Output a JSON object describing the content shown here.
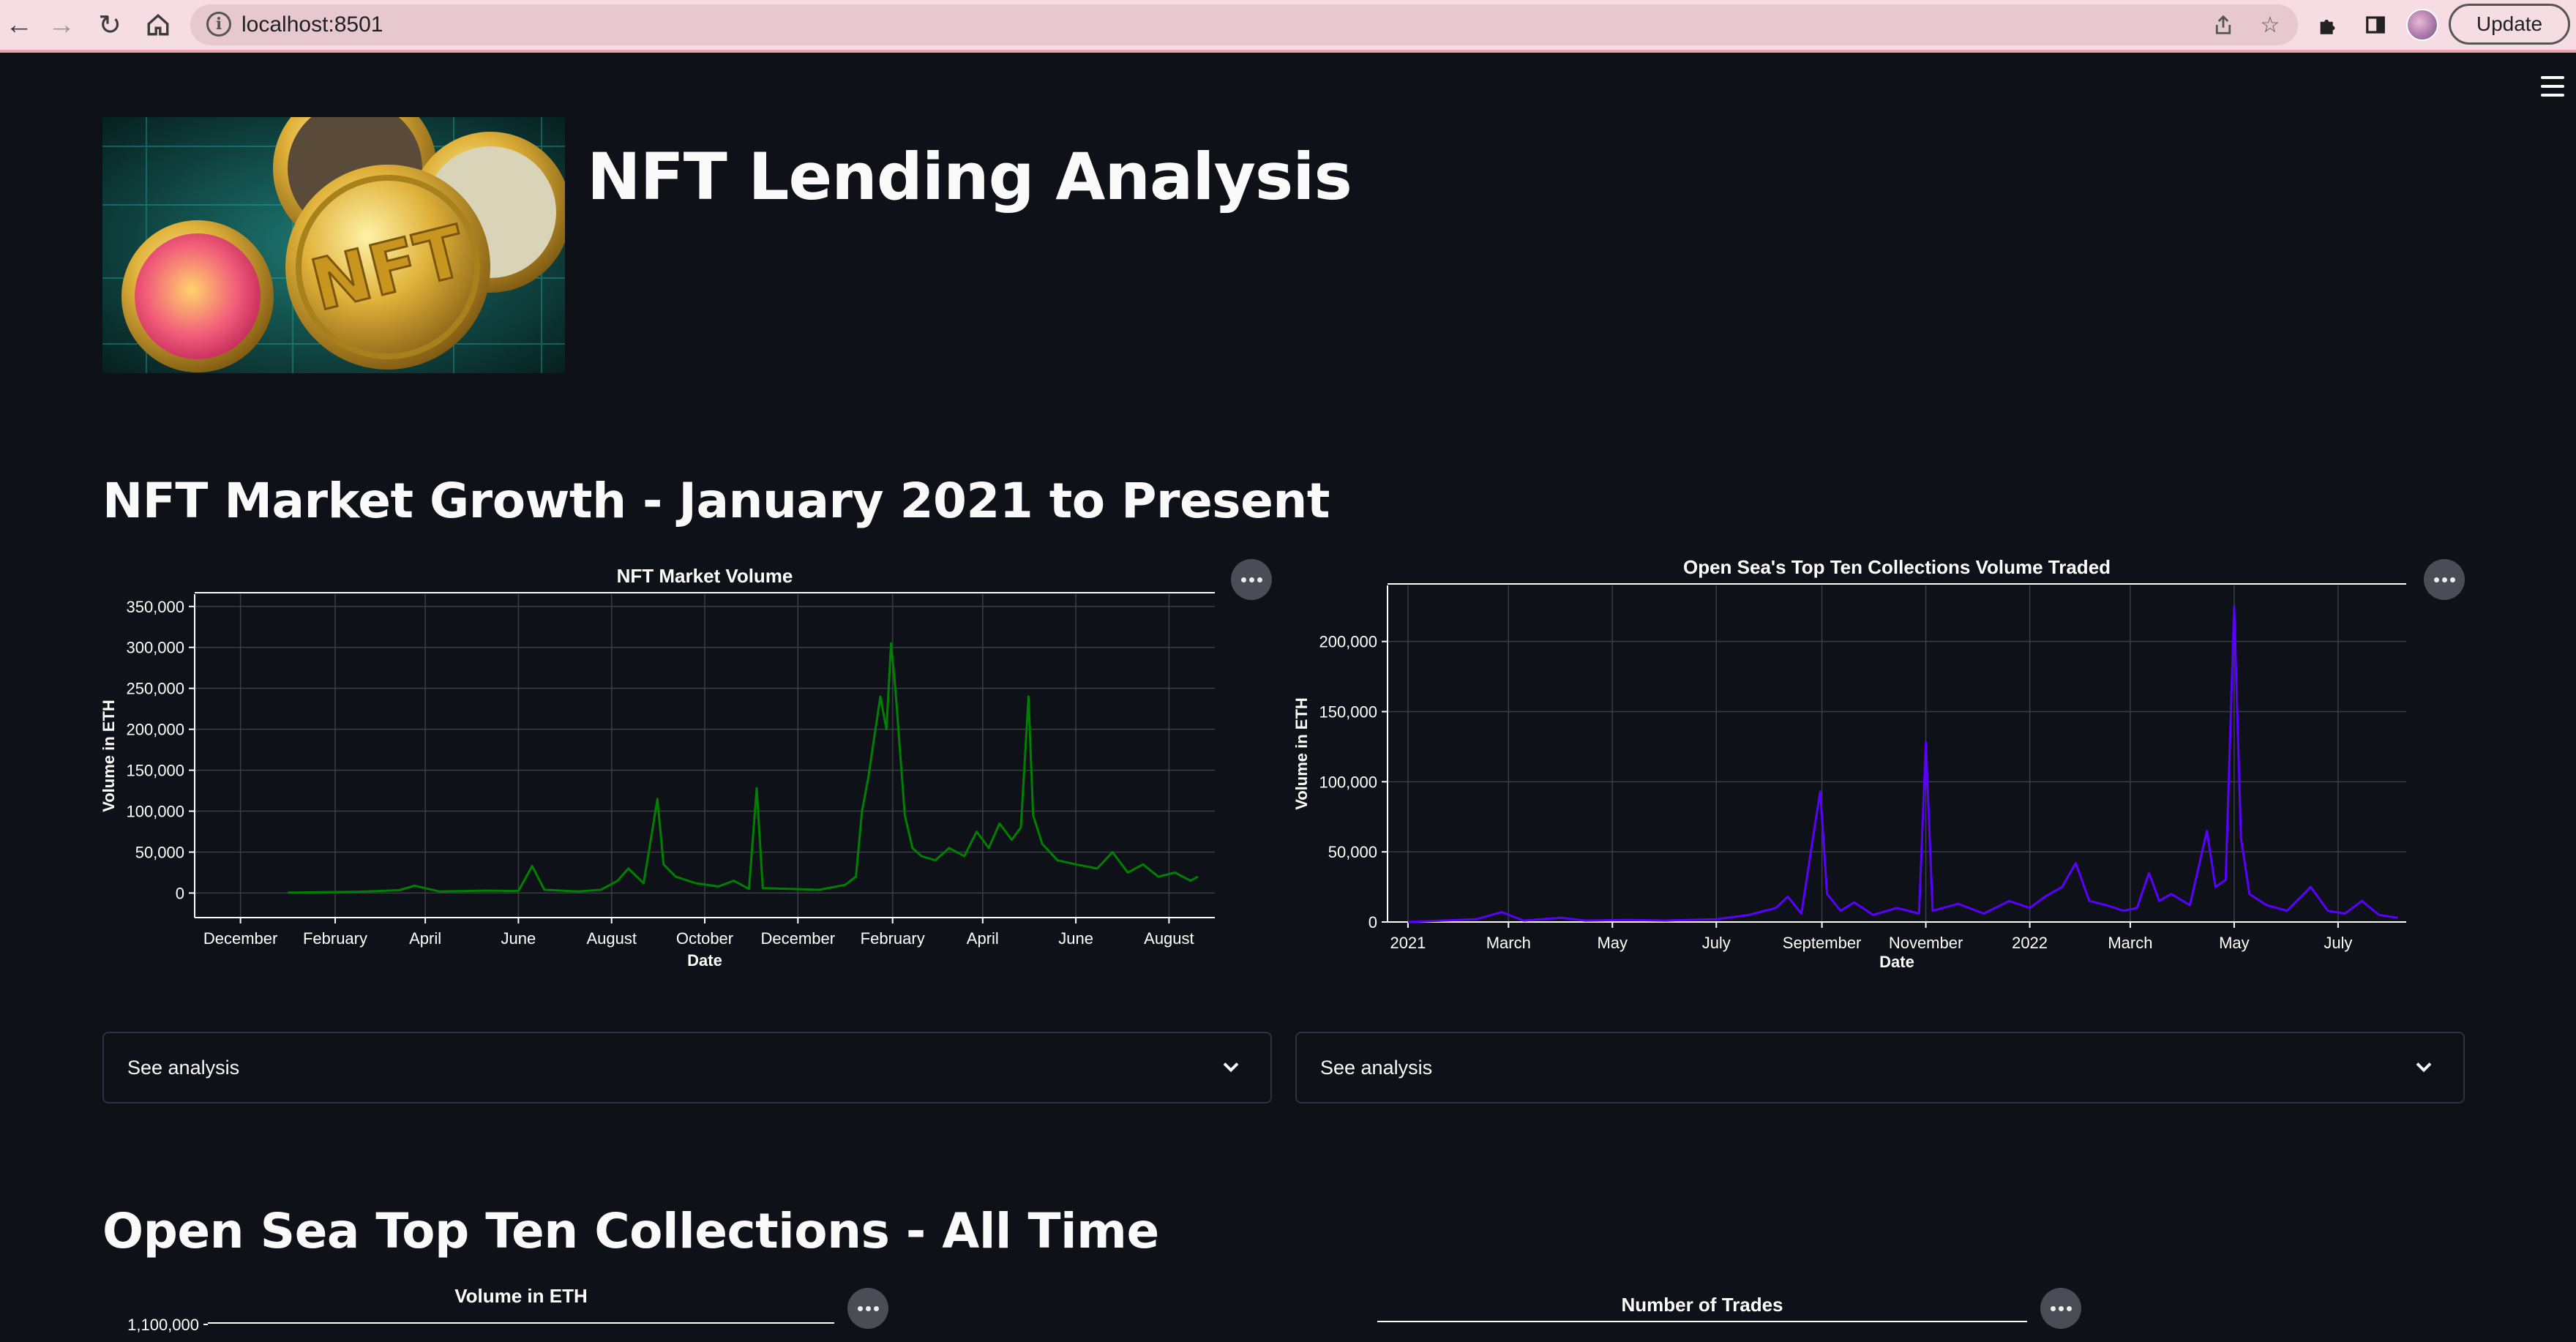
{
  "browser": {
    "url": "localhost:8501",
    "update_label": "Update"
  },
  "page": {
    "title": "NFT Lending Analysis",
    "hero_badge": "NFT"
  },
  "sections": [
    {
      "title": "NFT Market Growth - January 2021 to Present"
    },
    {
      "title": "Open Sea Top Ten Collections - All Time"
    }
  ],
  "expanders": [
    {
      "label": "See analysis"
    },
    {
      "label": "See analysis"
    }
  ],
  "colors": {
    "background": "#0e1117",
    "market_line": "#008000",
    "opensea_line": "#5a00ff",
    "grid": "#3a3d46",
    "text": "#ffffff"
  },
  "chart_data": [
    {
      "type": "line",
      "title": "NFT Market Volume",
      "xlabel": "Date",
      "ylabel": "Volume in ETH",
      "x_ticks": [
        "December",
        "February",
        "April",
        "June",
        "August",
        "October",
        "December",
        "February",
        "April",
        "June",
        "August"
      ],
      "y_ticks": [
        "0",
        "50,000",
        "100,000",
        "150,000",
        "200,000",
        "250,000",
        "300,000",
        "350,000"
      ],
      "ylim": [
        -30000,
        365000
      ],
      "x_range": [
        "2020-11-01",
        "2022-08-31"
      ],
      "grid": true,
      "series": [
        {
          "points": [
            [
              "2021-01-01",
              500
            ],
            [
              "2021-02-15",
              1500
            ],
            [
              "2021-03-15",
              3500
            ],
            [
              "2021-03-25",
              9000
            ],
            [
              "2021-04-10",
              2000
            ],
            [
              "2021-05-10",
              3000
            ],
            [
              "2021-06-01",
              2500
            ],
            [
              "2021-06-10",
              33000
            ],
            [
              "2021-06-18",
              4000
            ],
            [
              "2021-07-10",
              2000
            ],
            [
              "2021-07-25",
              4000
            ],
            [
              "2021-08-05",
              15000
            ],
            [
              "2021-08-12",
              30000
            ],
            [
              "2021-08-22",
              12000
            ],
            [
              "2021-08-28",
              80000
            ],
            [
              "2021-08-31",
              115000
            ],
            [
              "2021-09-04",
              35000
            ],
            [
              "2021-09-12",
              20000
            ],
            [
              "2021-09-25",
              12000
            ],
            [
              "2021-10-10",
              8000
            ],
            [
              "2021-10-20",
              15000
            ],
            [
              "2021-10-30",
              5000
            ],
            [
              "2021-11-04",
              128000
            ],
            [
              "2021-11-08",
              6000
            ],
            [
              "2021-11-25",
              5000
            ],
            [
              "2021-12-15",
              4000
            ],
            [
              "2022-01-01",
              10000
            ],
            [
              "2022-01-08",
              20000
            ],
            [
              "2022-01-12",
              100000
            ],
            [
              "2022-01-16",
              140000
            ],
            [
              "2022-01-20",
              190000
            ],
            [
              "2022-01-24",
              240000
            ],
            [
              "2022-01-28",
              200000
            ],
            [
              "2022-01-31",
              305000
            ],
            [
              "2022-02-03",
              245000
            ],
            [
              "2022-02-06",
              170000
            ],
            [
              "2022-02-09",
              95000
            ],
            [
              "2022-02-14",
              55000
            ],
            [
              "2022-02-20",
              45000
            ],
            [
              "2022-03-01",
              40000
            ],
            [
              "2022-03-10",
              55000
            ],
            [
              "2022-03-20",
              45000
            ],
            [
              "2022-03-28",
              75000
            ],
            [
              "2022-04-05",
              55000
            ],
            [
              "2022-04-12",
              85000
            ],
            [
              "2022-04-20",
              65000
            ],
            [
              "2022-04-26",
              80000
            ],
            [
              "2022-05-01",
              240000
            ],
            [
              "2022-05-04",
              95000
            ],
            [
              "2022-05-10",
              60000
            ],
            [
              "2022-05-20",
              40000
            ],
            [
              "2022-06-01",
              35000
            ],
            [
              "2022-06-15",
              30000
            ],
            [
              "2022-06-25",
              50000
            ],
            [
              "2022-07-05",
              25000
            ],
            [
              "2022-07-15",
              35000
            ],
            [
              "2022-07-25",
              20000
            ],
            [
              "2022-08-05",
              25000
            ],
            [
              "2022-08-15",
              15000
            ],
            [
              "2022-08-20",
              20000
            ]
          ]
        }
      ]
    },
    {
      "type": "line",
      "title": "Open Sea's Top Ten Collections Volume Traded",
      "xlabel": "Date",
      "ylabel": "Volume in ETH",
      "x_ticks": [
        "2021",
        "March",
        "May",
        "July",
        "September",
        "November",
        "2022",
        "March",
        "May",
        "July"
      ],
      "y_ticks": [
        "0",
        "50,000",
        "100,000",
        "150,000",
        "200,000"
      ],
      "ylim": [
        0,
        240000
      ],
      "x_range": [
        "2020-12-20",
        "2022-08-10"
      ],
      "grid": true,
      "series": [
        {
          "points": [
            [
              "2021-01-01",
              0
            ],
            [
              "2021-02-10",
              2000
            ],
            [
              "2021-02-25",
              7000
            ],
            [
              "2021-03-10",
              1000
            ],
            [
              "2021-04-01",
              3000
            ],
            [
              "2021-04-15",
              1000
            ],
            [
              "2021-05-10",
              1500
            ],
            [
              "2021-06-01",
              1000
            ],
            [
              "2021-07-01",
              2000
            ],
            [
              "2021-07-20",
              5000
            ],
            [
              "2021-08-05",
              10000
            ],
            [
              "2021-08-12",
              18000
            ],
            [
              "2021-08-20",
              6000
            ],
            [
              "2021-08-28",
              70000
            ],
            [
              "2021-08-31",
              93000
            ],
            [
              "2021-09-04",
              20000
            ],
            [
              "2021-09-12",
              8000
            ],
            [
              "2021-09-20",
              14000
            ],
            [
              "2021-10-01",
              5000
            ],
            [
              "2021-10-15",
              10000
            ],
            [
              "2021-10-28",
              6000
            ],
            [
              "2021-11-01",
              128000
            ],
            [
              "2021-11-05",
              8000
            ],
            [
              "2021-11-20",
              13000
            ],
            [
              "2021-12-05",
              6000
            ],
            [
              "2021-12-20",
              15000
            ],
            [
              "2022-01-01",
              10000
            ],
            [
              "2022-01-10",
              18000
            ],
            [
              "2022-01-20",
              25000
            ],
            [
              "2022-01-28",
              42000
            ],
            [
              "2022-02-05",
              15000
            ],
            [
              "2022-02-15",
              12000
            ],
            [
              "2022-02-25",
              8000
            ],
            [
              "2022-03-05",
              10000
            ],
            [
              "2022-03-12",
              35000
            ],
            [
              "2022-03-18",
              15000
            ],
            [
              "2022-03-25",
              20000
            ],
            [
              "2022-04-05",
              12000
            ],
            [
              "2022-04-15",
              65000
            ],
            [
              "2022-04-20",
              25000
            ],
            [
              "2022-04-26",
              30000
            ],
            [
              "2022-05-01",
              225000
            ],
            [
              "2022-05-05",
              60000
            ],
            [
              "2022-05-10",
              20000
            ],
            [
              "2022-05-20",
              12000
            ],
            [
              "2022-06-01",
              8000
            ],
            [
              "2022-06-15",
              25000
            ],
            [
              "2022-06-25",
              8000
            ],
            [
              "2022-07-05",
              6000
            ],
            [
              "2022-07-15",
              15000
            ],
            [
              "2022-07-25",
              5000
            ],
            [
              "2022-08-05",
              3000
            ]
          ]
        }
      ]
    },
    {
      "type": "bar",
      "title": "Volume in ETH",
      "y_ticks": [
        "1,100,000"
      ]
    },
    {
      "type": "bar",
      "title": "Number of Trades"
    }
  ]
}
